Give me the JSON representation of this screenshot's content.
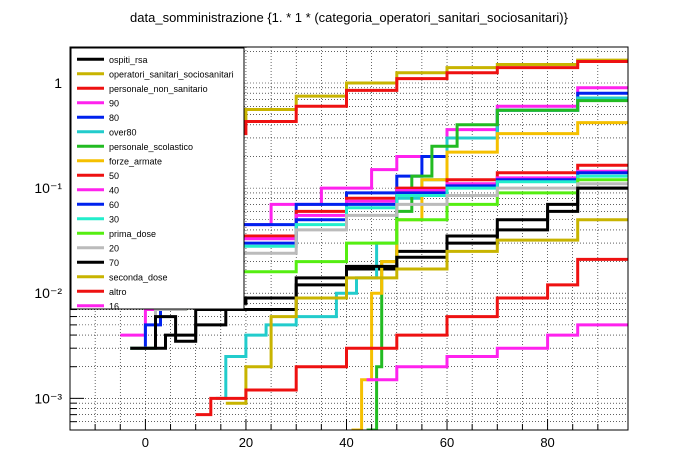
{
  "chart_data": {
    "type": "line",
    "title": "data_somministrazione  {1. * 1 * (categoria_operatori_sanitari_sociosanitari)}",
    "xlabel": "",
    "ylabel": "",
    "x_scale": "linear",
    "y_scale": "log",
    "xlim": [
      -15,
      96
    ],
    "ylim": [
      0.0005,
      2.2
    ],
    "x_ticks": [
      "0",
      "20",
      "40",
      "60",
      "80"
    ],
    "y_ticks": [
      "10⁻³",
      "10⁻²",
      "10⁻¹",
      "1"
    ],
    "grid": true,
    "legend_position": "top-left",
    "series": [
      {
        "name": "ospiti_rsa",
        "color": "#000000",
        "points": [
          [
            -2,
            0.003
          ],
          [
            4,
            0.004
          ],
          [
            10,
            0.007
          ],
          [
            17,
            0.008
          ],
          [
            20,
            0.009
          ],
          [
            30,
            0.012
          ],
          [
            40,
            0.017
          ],
          [
            50,
            0.025
          ],
          [
            60,
            0.035
          ],
          [
            70,
            0.05
          ],
          [
            80,
            0.07
          ],
          [
            86,
            0.1
          ],
          [
            96,
            0.1
          ]
        ]
      },
      {
        "name": "operatori_sanitari_sociosanitari",
        "color": "#c8b400",
        "points": [
          [
            -5,
            0.2
          ],
          [
            0,
            0.32
          ],
          [
            10,
            0.45
          ],
          [
            20,
            0.56
          ],
          [
            30,
            0.75
          ],
          [
            40,
            1.0
          ],
          [
            50,
            1.25
          ],
          [
            60,
            1.4
          ],
          [
            70,
            1.5
          ],
          [
            86,
            1.65
          ],
          [
            96,
            1.65
          ]
        ]
      },
      {
        "name": "personale_non_sanitario",
        "color": "#ee1111",
        "points": [
          [
            -5,
            0.15
          ],
          [
            0,
            0.24
          ],
          [
            10,
            0.33
          ],
          [
            20,
            0.43
          ],
          [
            30,
            0.6
          ],
          [
            40,
            0.85
          ],
          [
            50,
            1.1
          ],
          [
            60,
            1.25
          ],
          [
            70,
            1.4
          ],
          [
            86,
            1.6
          ],
          [
            96,
            1.6
          ]
        ]
      },
      {
        "name": "90",
        "color": "#ff22ee",
        "points": [
          [
            -5,
            0.004
          ],
          [
            0,
            0.007
          ],
          [
            3,
            0.015
          ],
          [
            10,
            0.035
          ],
          [
            16,
            0.045
          ],
          [
            25,
            0.07
          ],
          [
            35,
            0.1
          ],
          [
            45,
            0.15
          ],
          [
            50,
            0.2
          ],
          [
            60,
            0.36
          ],
          [
            70,
            0.6
          ],
          [
            86,
            0.9
          ],
          [
            96,
            0.9
          ]
        ]
      },
      {
        "name": "80",
        "color": "#0022ee",
        "points": [
          [
            -3,
            0.003
          ],
          [
            0,
            0.005
          ],
          [
            3,
            0.008
          ],
          [
            8,
            0.02
          ],
          [
            16,
            0.045
          ],
          [
            30,
            0.07
          ],
          [
            40,
            0.09
          ],
          [
            50,
            0.13
          ],
          [
            55,
            0.2
          ],
          [
            60,
            0.3
          ],
          [
            70,
            0.55
          ],
          [
            86,
            0.8
          ],
          [
            96,
            0.8
          ]
        ]
      },
      {
        "name": "over80",
        "color": "#22cccc",
        "points": [
          [
            14,
            0.001
          ],
          [
            16,
            0.0025
          ],
          [
            20,
            0.004
          ],
          [
            24,
            0.005
          ],
          [
            30,
            0.006
          ],
          [
            38,
            0.01
          ],
          [
            42,
            0.014
          ],
          [
            46,
            0.03
          ],
          [
            50,
            0.08
          ],
          [
            55,
            0.12
          ],
          [
            60,
            0.3
          ],
          [
            70,
            0.55
          ],
          [
            86,
            0.72
          ],
          [
            96,
            0.72
          ]
        ]
      },
      {
        "name": "personale_scolastico",
        "color": "#22bb22",
        "points": [
          [
            44,
            0.0005
          ],
          [
            46,
            0.002
          ],
          [
            47,
            0.02
          ],
          [
            50,
            0.06
          ],
          [
            53,
            0.13
          ],
          [
            57,
            0.25
          ],
          [
            62,
            0.4
          ],
          [
            70,
            0.55
          ],
          [
            86,
            0.68
          ],
          [
            96,
            0.68
          ]
        ]
      },
      {
        "name": "forze_armate",
        "color": "#f5c000",
        "points": [
          [
            41,
            0.0005
          ],
          [
            43,
            0.0015
          ],
          [
            45,
            0.01
          ],
          [
            47,
            0.02
          ],
          [
            50,
            0.05
          ],
          [
            55,
            0.12
          ],
          [
            60,
            0.22
          ],
          [
            70,
            0.33
          ],
          [
            86,
            0.42
          ],
          [
            96,
            0.42
          ]
        ]
      },
      {
        "name": "50",
        "color": "#ee1111",
        "points": [
          [
            -3,
            0.003
          ],
          [
            2,
            0.01
          ],
          [
            8,
            0.022
          ],
          [
            16,
            0.035
          ],
          [
            30,
            0.06
          ],
          [
            40,
            0.08
          ],
          [
            50,
            0.1
          ],
          [
            60,
            0.12
          ],
          [
            70,
            0.14
          ],
          [
            86,
            0.165
          ],
          [
            96,
            0.165
          ]
        ]
      },
      {
        "name": "40",
        "color": "#ff22ee",
        "points": [
          [
            -3,
            0.003
          ],
          [
            2,
            0.009
          ],
          [
            8,
            0.02
          ],
          [
            16,
            0.033
          ],
          [
            30,
            0.055
          ],
          [
            40,
            0.075
          ],
          [
            50,
            0.095
          ],
          [
            60,
            0.11
          ],
          [
            70,
            0.125
          ],
          [
            86,
            0.145
          ],
          [
            96,
            0.145
          ]
        ]
      },
      {
        "name": "60",
        "color": "#0022ee",
        "points": [
          [
            -3,
            0.003
          ],
          [
            2,
            0.008
          ],
          [
            8,
            0.018
          ],
          [
            16,
            0.03
          ],
          [
            30,
            0.05
          ],
          [
            40,
            0.07
          ],
          [
            50,
            0.09
          ],
          [
            60,
            0.105
          ],
          [
            70,
            0.12
          ],
          [
            86,
            0.14
          ],
          [
            96,
            0.14
          ]
        ]
      },
      {
        "name": "30",
        "color": "#22eecc",
        "points": [
          [
            -3,
            0.003
          ],
          [
            2,
            0.008
          ],
          [
            8,
            0.017
          ],
          [
            16,
            0.028
          ],
          [
            30,
            0.045
          ],
          [
            40,
            0.065
          ],
          [
            50,
            0.085
          ],
          [
            60,
            0.1
          ],
          [
            70,
            0.115
          ],
          [
            86,
            0.13
          ],
          [
            96,
            0.13
          ]
        ]
      },
      {
        "name": "prima_dose",
        "color": "#55ee11",
        "points": [
          [
            -3,
            0.003
          ],
          [
            2,
            0.007
          ],
          [
            8,
            0.012
          ],
          [
            16,
            0.016
          ],
          [
            30,
            0.02
          ],
          [
            40,
            0.03
          ],
          [
            50,
            0.05
          ],
          [
            60,
            0.07
          ],
          [
            70,
            0.09
          ],
          [
            86,
            0.12
          ],
          [
            96,
            0.12
          ]
        ]
      },
      {
        "name": "20",
        "color": "#bbbbbb",
        "points": [
          [
            -3,
            0.003
          ],
          [
            2,
            0.007
          ],
          [
            8,
            0.015
          ],
          [
            16,
            0.024
          ],
          [
            30,
            0.04
          ],
          [
            40,
            0.055
          ],
          [
            50,
            0.07
          ],
          [
            60,
            0.085
          ],
          [
            70,
            0.1
          ],
          [
            86,
            0.11
          ],
          [
            96,
            0.11
          ]
        ]
      },
      {
        "name": "70",
        "color": "#000000",
        "points": [
          [
            -3,
            0.003
          ],
          [
            2,
            0.006
          ],
          [
            6,
            0.0035
          ],
          [
            10,
            0.005
          ],
          [
            16,
            0.007
          ],
          [
            30,
            0.014
          ],
          [
            40,
            0.018
          ],
          [
            50,
            0.022
          ],
          [
            60,
            0.03
          ],
          [
            70,
            0.04
          ],
          [
            80,
            0.06
          ],
          [
            86,
            0.1
          ],
          [
            96,
            0.1
          ]
        ]
      },
      {
        "name": "seconda_dose",
        "color": "#c8b400",
        "points": [
          [
            16,
            0.0009
          ],
          [
            20,
            0.002
          ],
          [
            25,
            0.006
          ],
          [
            30,
            0.009
          ],
          [
            40,
            0.014
          ],
          [
            50,
            0.017
          ],
          [
            60,
            0.025
          ],
          [
            70,
            0.032
          ],
          [
            86,
            0.05
          ],
          [
            96,
            0.05
          ]
        ]
      },
      {
        "name": "altro",
        "color": "#ee1111",
        "points": [
          [
            10,
            0.0007
          ],
          [
            13,
            0.001
          ],
          [
            20,
            0.0012
          ],
          [
            30,
            0.002
          ],
          [
            40,
            0.003
          ],
          [
            50,
            0.004
          ],
          [
            60,
            0.006
          ],
          [
            70,
            0.009
          ],
          [
            80,
            0.012
          ],
          [
            86,
            0.021
          ],
          [
            96,
            0.021
          ]
        ]
      },
      {
        "name": "16",
        "color": "#ff22ee",
        "points": [
          [
            44,
            0.0015
          ],
          [
            50,
            0.002
          ],
          [
            60,
            0.0025
          ],
          [
            70,
            0.003
          ],
          [
            80,
            0.004
          ],
          [
            86,
            0.005
          ],
          [
            96,
            0.005
          ]
        ]
      }
    ]
  }
}
